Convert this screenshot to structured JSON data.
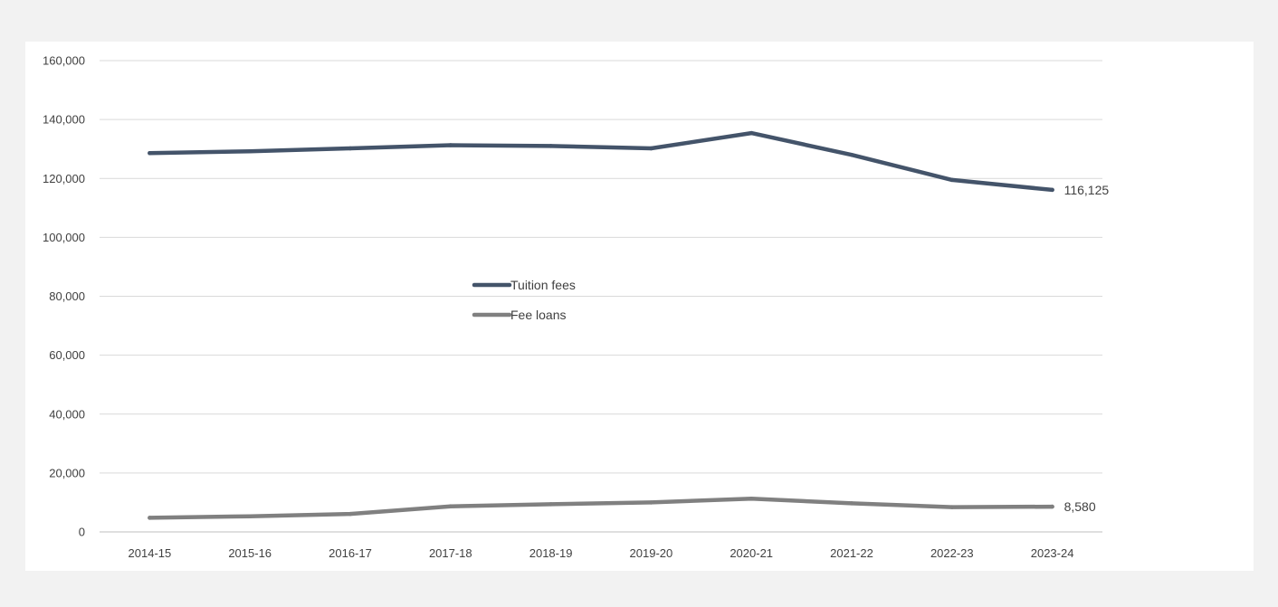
{
  "chart_data": {
    "type": "line",
    "title": "",
    "xlabel": "",
    "ylabel": "",
    "categories": [
      "2014-15",
      "2015-16",
      "2016-17",
      "2017-18",
      "2018-19",
      "2019-20",
      "2020-21",
      "2021-22",
      "2022-23",
      "2023-24"
    ],
    "ylim": [
      0,
      160000
    ],
    "yticks": [
      0,
      20000,
      40000,
      60000,
      80000,
      100000,
      120000,
      140000,
      160000
    ],
    "ytick_labels": [
      "0",
      "20,000",
      "40,000",
      "60,000",
      "80,000",
      "100,000",
      "120,000",
      "140,000",
      "160,000"
    ],
    "grid": "horizontal",
    "legend_position": "center",
    "series": [
      {
        "name": "Tuition fees",
        "color": "#44546a",
        "values": [
          128600,
          129200,
          130200,
          131300,
          131000,
          130200,
          135400,
          128000,
          119500,
          116125
        ],
        "end_label": "116,125"
      },
      {
        "name": "Fee loans",
        "color": "#808080",
        "values": [
          4800,
          5300,
          6100,
          8700,
          9400,
          10000,
          11300,
          9700,
          8400,
          8580
        ],
        "end_label": "8,580"
      }
    ]
  }
}
